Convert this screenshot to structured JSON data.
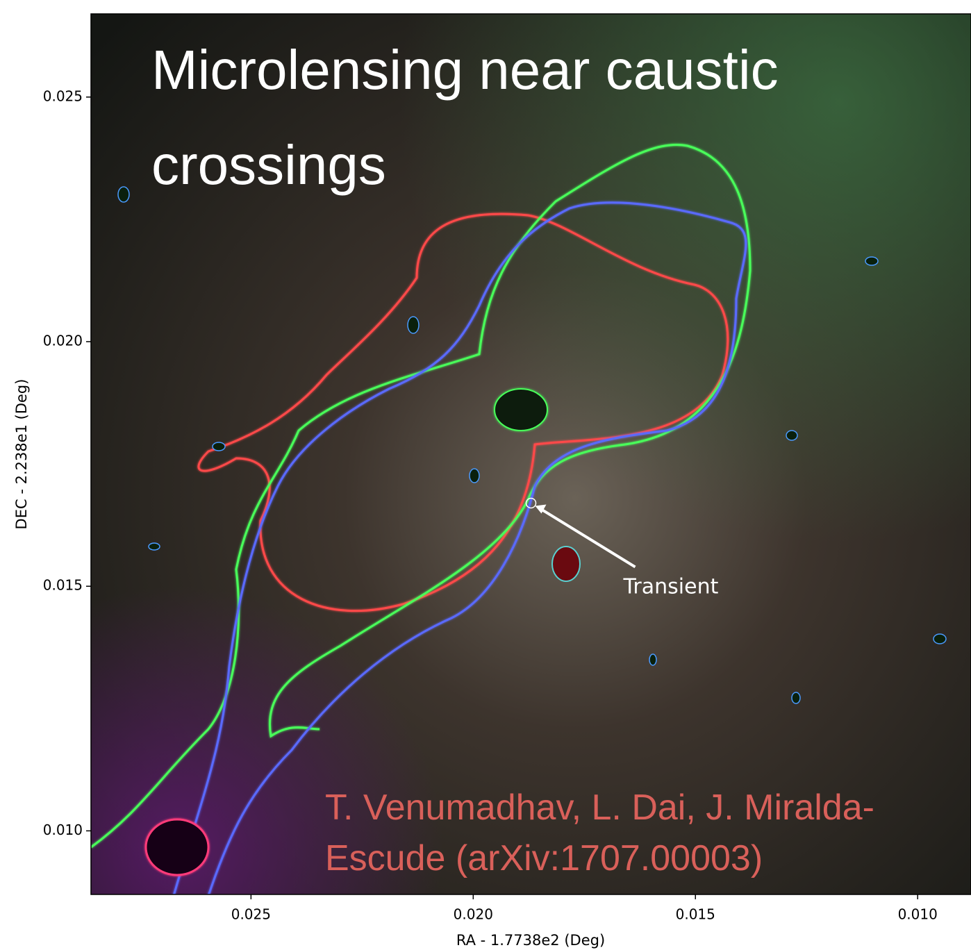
{
  "chart_data": {
    "type": "image",
    "title_lines": [
      "Microlensing near caustic",
      "crossings"
    ],
    "credit_lines": [
      "T. Venumadhav, L. Dai, J. Miralda-",
      "Escude (arXiv:1707.00003)"
    ],
    "x_label": "RA - 1.7738e2 (Deg)",
    "y_label": "DEC - 2.238e1 (Deg)",
    "xlim": [
      0.0286,
      0.0088
    ],
    "ylim": [
      0.0087,
      0.0267
    ],
    "xticks": [
      0.025,
      {
        "value": 0.02,
        "label": "0.020"
      },
      0.015,
      {
        "value": 0.01,
        "label": "0.010"
      }
    ],
    "yticks": [
      {
        "value": 0.01,
        "label": "0.010"
      },
      0.015,
      {
        "value": 0.02,
        "label": "0.020"
      },
      0.025
    ],
    "annotation": {
      "text": "Transient",
      "x": 0.0187,
      "y": 0.0167
    }
  }
}
